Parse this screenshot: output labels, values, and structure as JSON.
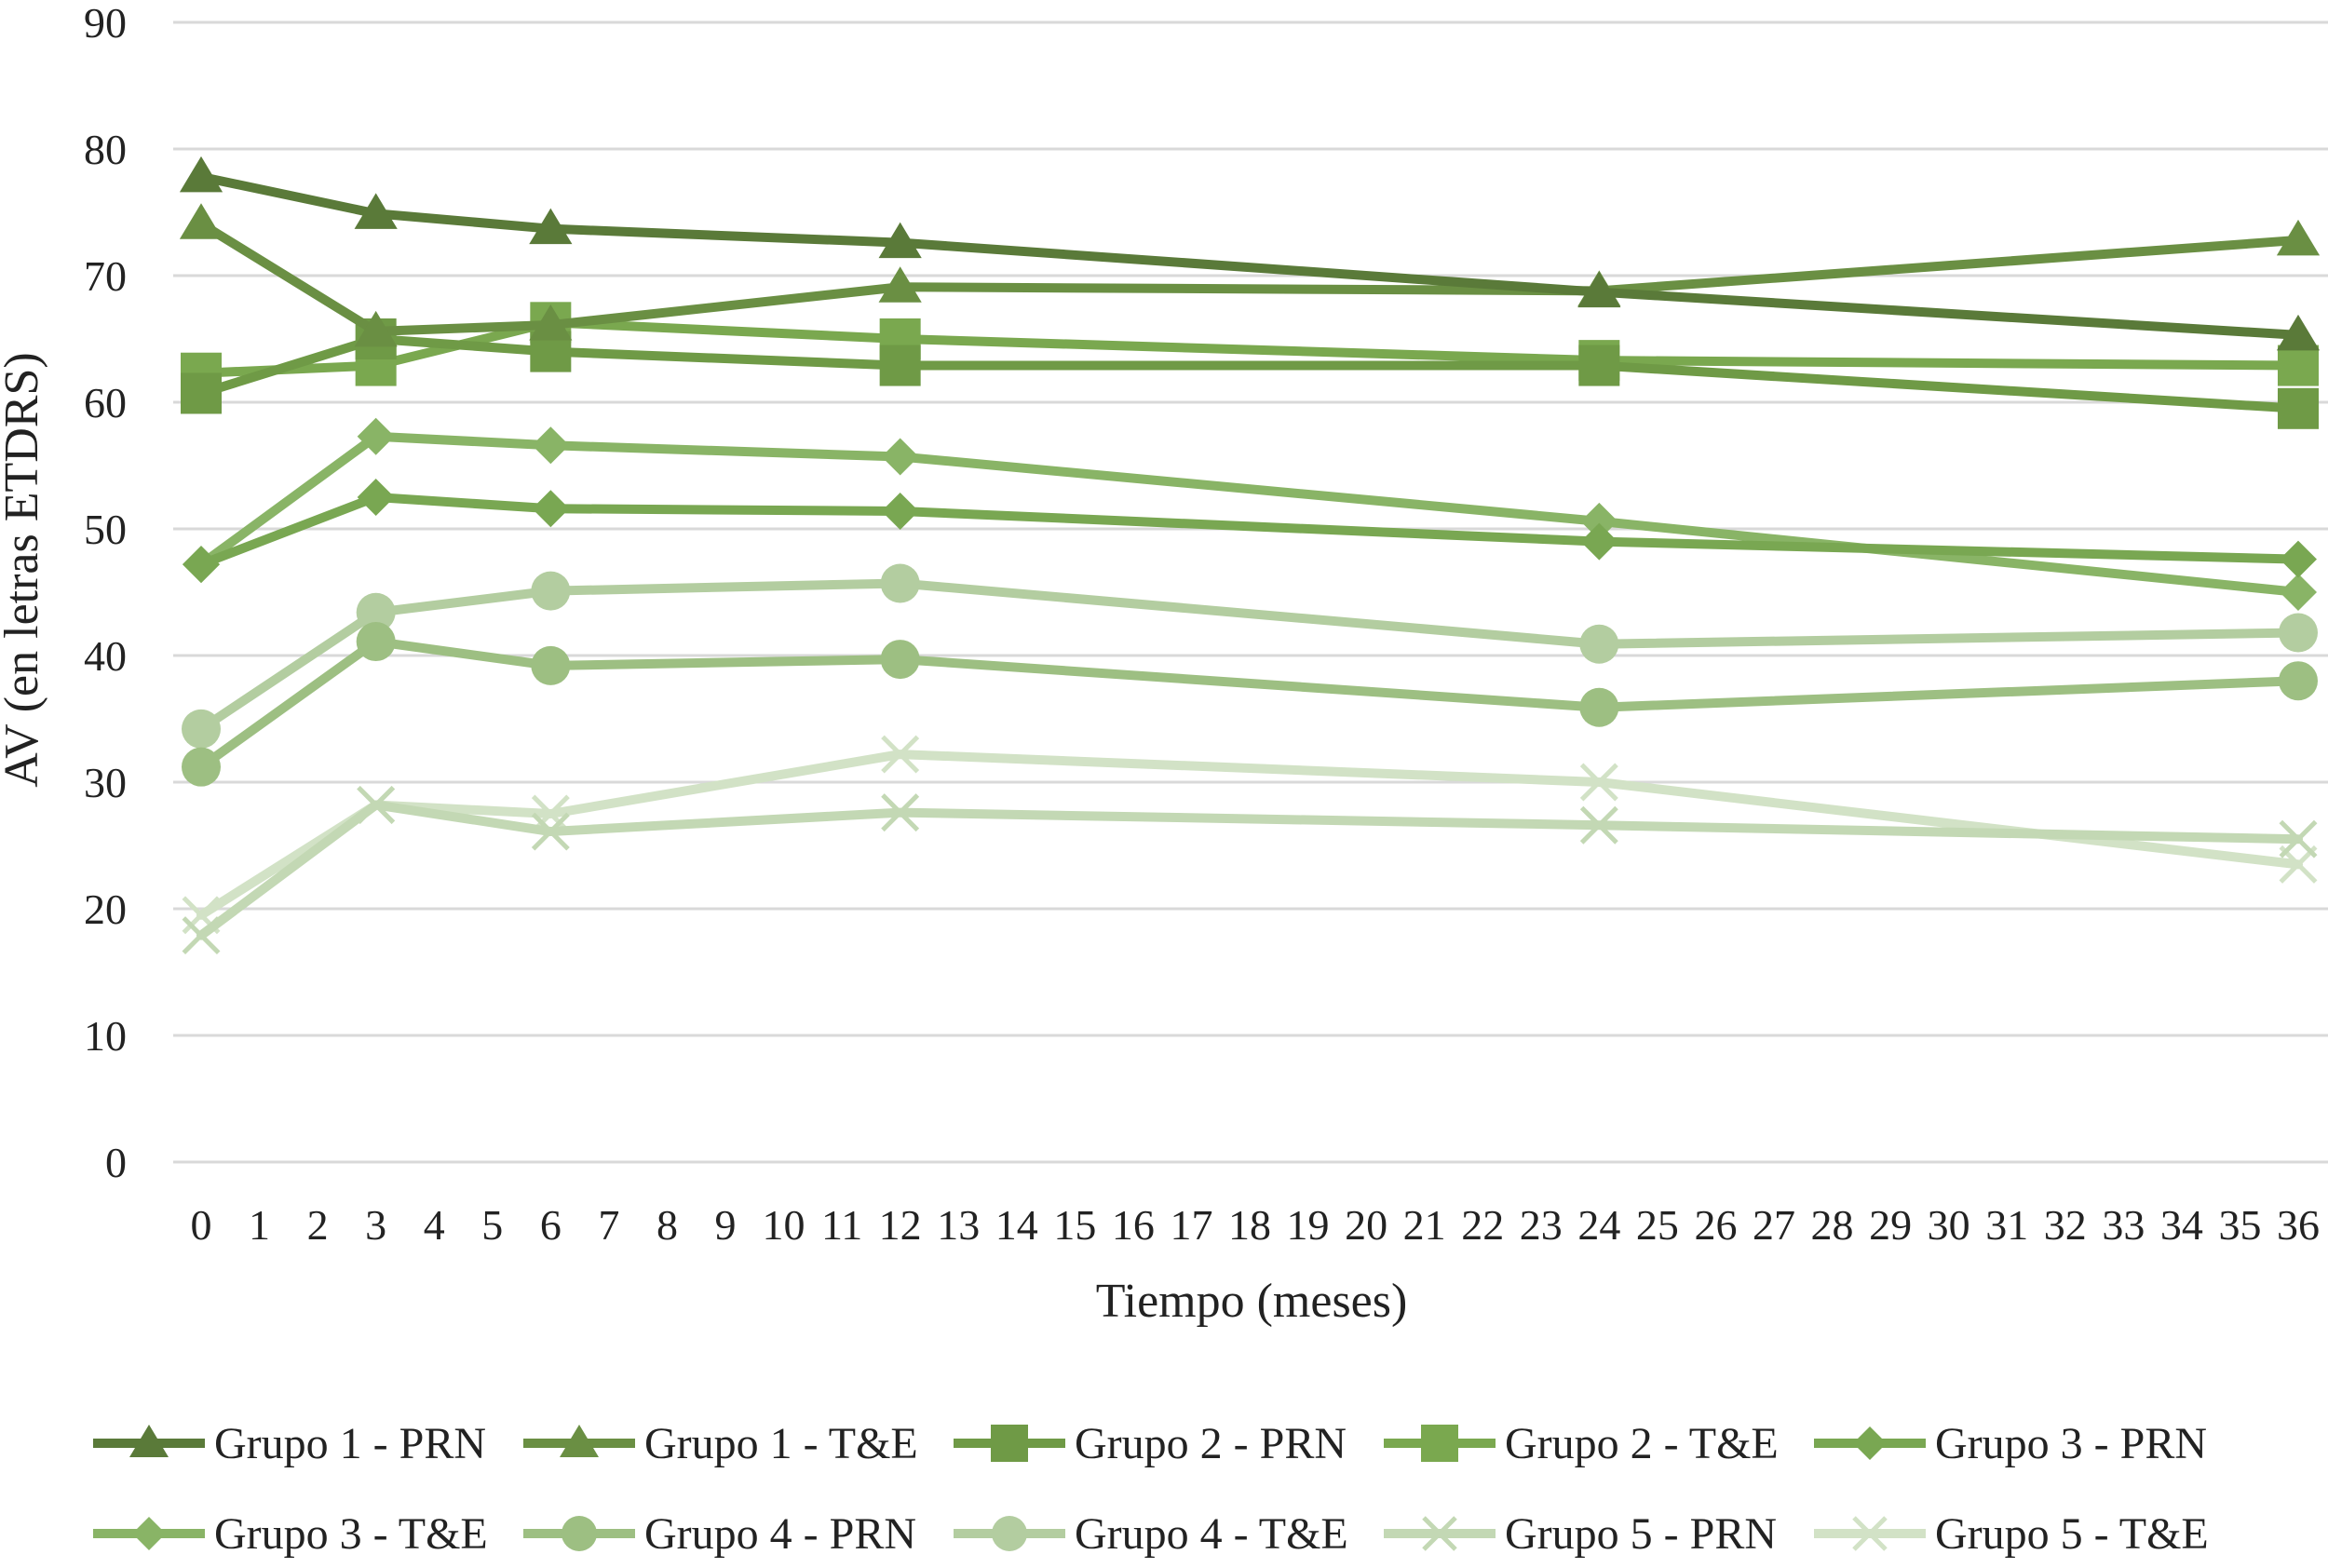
{
  "chart_data": {
    "type": "line",
    "title": "",
    "xlabel": "Tiempo (meses)",
    "ylabel": "AV (en letras ETDRS)",
    "x_ticks": [
      0,
      1,
      2,
      3,
      4,
      5,
      6,
      7,
      8,
      9,
      10,
      11,
      12,
      13,
      14,
      15,
      16,
      17,
      18,
      19,
      20,
      21,
      22,
      23,
      24,
      25,
      26,
      27,
      28,
      29,
      30,
      31,
      32,
      33,
      34,
      35,
      36
    ],
    "xlim": [
      0,
      36
    ],
    "y_ticks": [
      0,
      10,
      20,
      30,
      40,
      50,
      60,
      70,
      80,
      90
    ],
    "ylim": [
      0,
      90
    ],
    "grid": "horizontal",
    "legend_position": "bottom",
    "series": [
      {
        "name": "Grupo 1 - PRN",
        "marker": "triangle",
        "color": "#5a7a39",
        "x": [
          0,
          3,
          6,
          12,
          24,
          36
        ],
        "values": [
          77.8,
          74.9,
          73.7,
          72.6,
          68.7,
          65.3
        ]
      },
      {
        "name": "Grupo 1 - T&E",
        "marker": "triangle",
        "color": "#6a8f43",
        "x": [
          0,
          3,
          6,
          12,
          24,
          36
        ],
        "values": [
          74.1,
          65.6,
          66.1,
          69.1,
          68.8,
          72.8
        ]
      },
      {
        "name": "Grupo 2 - PRN",
        "marker": "square",
        "color": "#6f9a46",
        "x": [
          0,
          3,
          6,
          12,
          24,
          36
        ],
        "values": [
          60.7,
          65.0,
          64.0,
          62.9,
          62.9,
          59.5
        ]
      },
      {
        "name": "Grupo 2 - T&E",
        "marker": "square",
        "color": "#7aa84f",
        "x": [
          0,
          3,
          6,
          12,
          24,
          36
        ],
        "values": [
          62.3,
          62.9,
          66.3,
          65.0,
          63.3,
          62.9
        ]
      },
      {
        "name": "Grupo 3 - PRN",
        "marker": "diamond",
        "color": "#79a752",
        "x": [
          0,
          3,
          6,
          12,
          24,
          36
        ],
        "values": [
          47.2,
          52.5,
          51.6,
          51.4,
          49.0,
          47.6
        ]
      },
      {
        "name": "Grupo 3 - T&E",
        "marker": "diamond",
        "color": "#89b466",
        "x": [
          0,
          3,
          6,
          12,
          24,
          36
        ],
        "values": [
          47.2,
          57.3,
          56.6,
          55.7,
          50.6,
          45.0
        ]
      },
      {
        "name": "Grupo 4 - PRN",
        "marker": "circle",
        "color": "#9dbf82",
        "x": [
          0,
          3,
          6,
          12,
          24,
          36
        ],
        "values": [
          31.2,
          41.1,
          39.2,
          39.7,
          35.9,
          38.0
        ]
      },
      {
        "name": "Grupo 4 - T&E",
        "marker": "circle",
        "color": "#b3cda0",
        "x": [
          0,
          3,
          6,
          12,
          24,
          36
        ],
        "values": [
          34.2,
          43.4,
          45.1,
          45.7,
          40.9,
          41.8
        ]
      },
      {
        "name": "Grupo 5 - PRN",
        "marker": "x",
        "color": "#c3d8b4",
        "x": [
          0,
          3,
          6,
          12,
          24,
          36
        ],
        "values": [
          17.9,
          28.2,
          26.1,
          27.6,
          26.6,
          25.5
        ]
      },
      {
        "name": "Grupo 5 - T&E",
        "marker": "x",
        "color": "#d2e2c6",
        "x": [
          0,
          3,
          6,
          12,
          24,
          36
        ],
        "values": [
          19.5,
          28.2,
          27.5,
          32.2,
          30.0,
          23.5
        ]
      }
    ]
  }
}
